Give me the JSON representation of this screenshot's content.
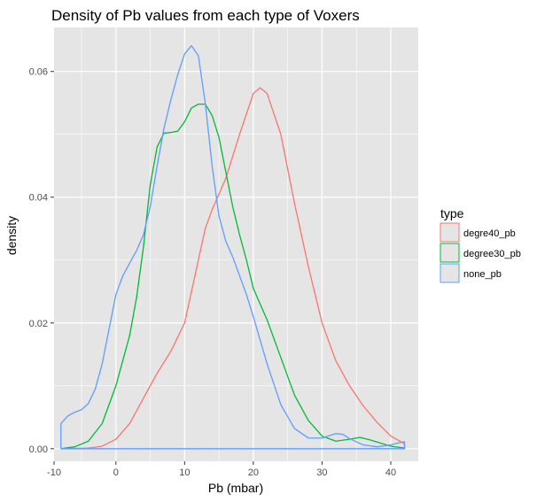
{
  "chart_data": {
    "type": "line",
    "title": "Density of Pb values from each type of Voxers",
    "xlabel": "Pb (mbar)",
    "ylabel": "density",
    "xlim": [
      -9,
      44
    ],
    "ylim": [
      -0.002,
      0.067
    ],
    "x_ticks": [
      -10,
      0,
      10,
      20,
      30,
      40
    ],
    "x_tick_labels": [
      "-10",
      "0",
      "10",
      "20",
      "30",
      "40"
    ],
    "y_ticks": [
      0,
      0.02,
      0.04,
      0.06
    ],
    "y_tick_labels": [
      "0.00",
      "0.02",
      "0.04",
      "0.06"
    ],
    "grid": true,
    "legend_position": "right",
    "legend_title": "type",
    "colors": {
      "panel_background": "#e5e5e5",
      "grid": "#ffffff",
      "axis_text": "#4d4d4d"
    },
    "series": [
      {
        "name": "degre40_pb",
        "color": "#f8766d",
        "points": [
          [
            -8,
            0
          ],
          [
            -4,
            0.0001
          ],
          [
            -2,
            0.0004
          ],
          [
            0,
            0.0015
          ],
          [
            2,
            0.004
          ],
          [
            4,
            0.008
          ],
          [
            6,
            0.012
          ],
          [
            8,
            0.0155
          ],
          [
            10,
            0.02
          ],
          [
            12,
            0.03
          ],
          [
            13,
            0.035
          ],
          [
            14,
            0.038
          ],
          [
            16,
            0.043
          ],
          [
            18,
            0.05
          ],
          [
            20,
            0.0565
          ],
          [
            21,
            0.0574
          ],
          [
            22,
            0.0565
          ],
          [
            24,
            0.05
          ],
          [
            26,
            0.039
          ],
          [
            28,
            0.029
          ],
          [
            30,
            0.02
          ],
          [
            32,
            0.014
          ],
          [
            34,
            0.01
          ],
          [
            36,
            0.0068
          ],
          [
            38,
            0.0042
          ],
          [
            40,
            0.002
          ],
          [
            42,
            0.0008
          ],
          [
            42,
            0
          ]
        ]
      },
      {
        "name": "degree30_pb",
        "color": "#00ba38",
        "points": [
          [
            -8,
            0
          ],
          [
            -6,
            0.0003
          ],
          [
            -4,
            0.0012
          ],
          [
            -2,
            0.004
          ],
          [
            0,
            0.01
          ],
          [
            2,
            0.018
          ],
          [
            3,
            0.024
          ],
          [
            4,
            0.032
          ],
          [
            5,
            0.042
          ],
          [
            6,
            0.048
          ],
          [
            7,
            0.0502
          ],
          [
            8,
            0.0503
          ],
          [
            9,
            0.0505
          ],
          [
            10,
            0.052
          ],
          [
            11,
            0.0542
          ],
          [
            12,
            0.0548
          ],
          [
            13,
            0.0548
          ],
          [
            14,
            0.053
          ],
          [
            15,
            0.0495
          ],
          [
            16,
            0.044
          ],
          [
            17,
            0.0385
          ],
          [
            18,
            0.034
          ],
          [
            19,
            0.03
          ],
          [
            20,
            0.0255
          ],
          [
            22,
            0.0205
          ],
          [
            24,
            0.0145
          ],
          [
            26,
            0.0085
          ],
          [
            28,
            0.0045
          ],
          [
            30,
            0.002
          ],
          [
            32,
            0.0012
          ],
          [
            34,
            0.0015
          ],
          [
            35.5,
            0.0018
          ],
          [
            37,
            0.0014
          ],
          [
            40,
            0.0004
          ],
          [
            42,
            0.0001
          ],
          [
            42,
            0
          ]
        ]
      },
      {
        "name": "none_pb",
        "color": "#619cff",
        "points": [
          [
            -8,
            0.004
          ],
          [
            -7,
            0.0052
          ],
          [
            -6,
            0.0058
          ],
          [
            -5,
            0.0062
          ],
          [
            -4,
            0.0072
          ],
          [
            -3,
            0.0095
          ],
          [
            -2,
            0.0135
          ],
          [
            -1,
            0.019
          ],
          [
            0,
            0.0245
          ],
          [
            1,
            0.0275
          ],
          [
            2,
            0.0295
          ],
          [
            3,
            0.0315
          ],
          [
            4,
            0.034
          ],
          [
            5,
            0.0385
          ],
          [
            6,
            0.045
          ],
          [
            7,
            0.051
          ],
          [
            8,
            0.0555
          ],
          [
            9,
            0.0595
          ],
          [
            10,
            0.0628
          ],
          [
            11,
            0.0641
          ],
          [
            12,
            0.0625
          ],
          [
            13,
            0.055
          ],
          [
            14,
            0.045
          ],
          [
            15,
            0.037
          ],
          [
            16,
            0.033
          ],
          [
            17,
            0.0305
          ],
          [
            18,
            0.0275
          ],
          [
            19,
            0.0245
          ],
          [
            20,
            0.021
          ],
          [
            22,
            0.0135
          ],
          [
            24,
            0.007
          ],
          [
            26,
            0.0032
          ],
          [
            28,
            0.0017
          ],
          [
            30,
            0.0017
          ],
          [
            32,
            0.0024
          ],
          [
            33,
            0.0023
          ],
          [
            34,
            0.0016
          ],
          [
            36,
            0.0006
          ],
          [
            38,
            0.0003
          ],
          [
            40,
            0.0006
          ],
          [
            41,
            0.0009
          ],
          [
            42,
            0.0011
          ],
          [
            42,
            0
          ],
          [
            -8,
            0
          ],
          [
            -8,
            0.004
          ]
        ]
      }
    ]
  }
}
